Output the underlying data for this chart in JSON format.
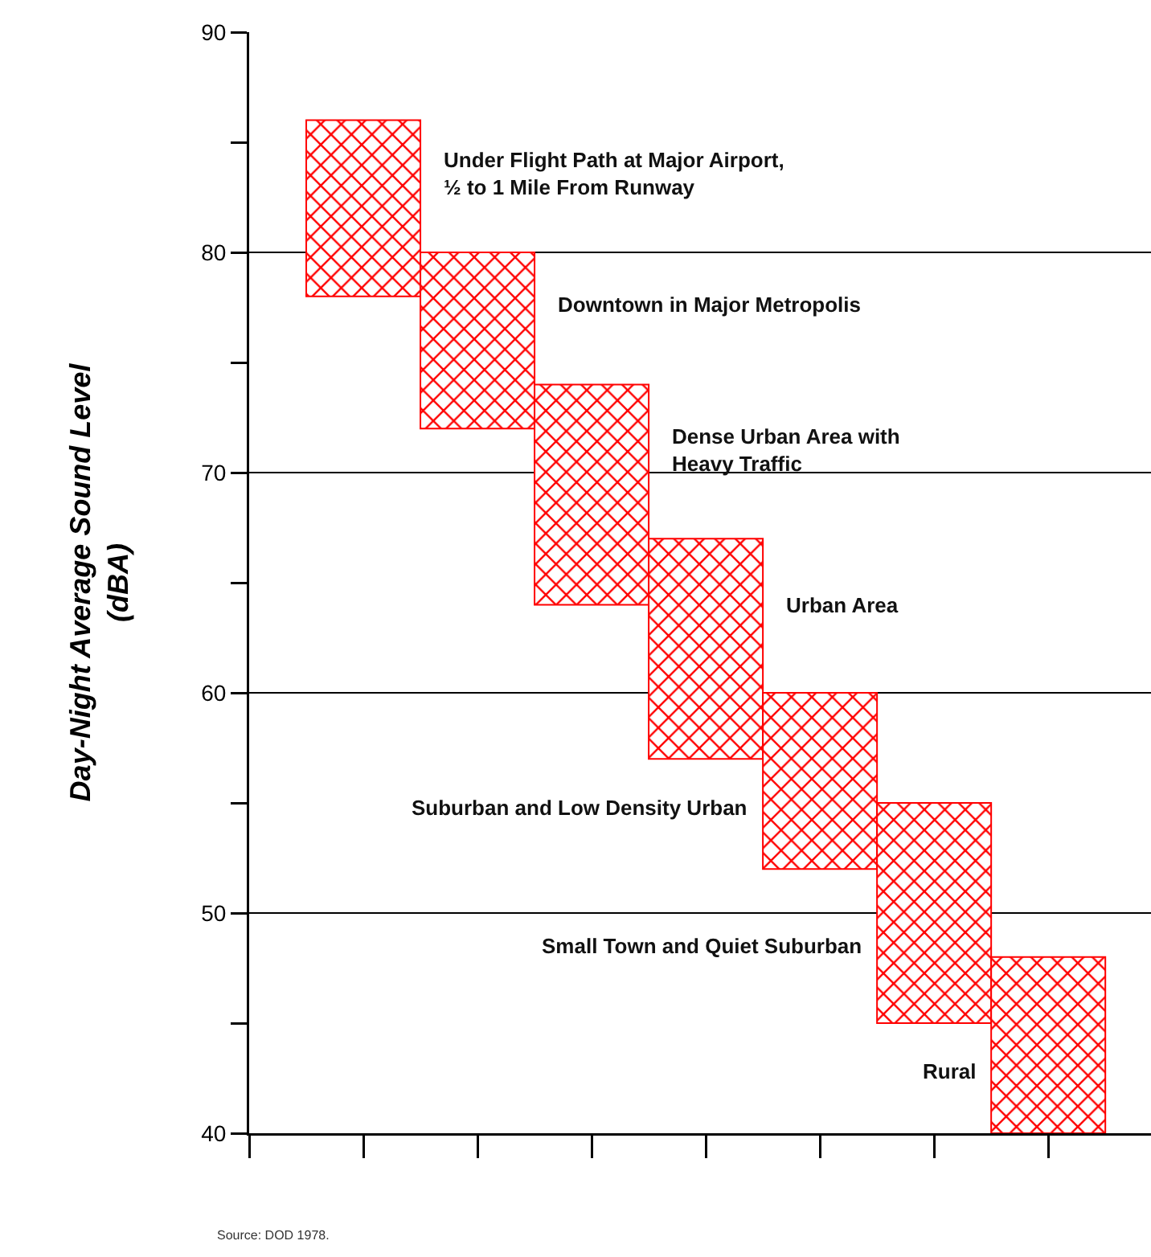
{
  "chart_data": {
    "type": "bar",
    "ylabel": "Day-Night Average Sound Level\n(dBA)",
    "categories": [
      null,
      null,
      null,
      null,
      null,
      null,
      null
    ],
    "base": [
      78,
      72,
      64,
      57,
      52,
      45,
      40
    ],
    "values": [
      8,
      8,
      10,
      10,
      8,
      10,
      8
    ],
    "color": "#ff0000",
    "ylim": [
      40,
      90
    ],
    "yticks": [
      40,
      {
        "value": 45,
        "label": null
      },
      50,
      {
        "value": 55,
        "label": null
      },
      60,
      {
        "value": 65,
        "label": null
      },
      70,
      {
        "value": 75,
        "label": null
      },
      80,
      {
        "value": 85,
        "label": null
      },
      90
    ],
    "grid": "y",
    "annotations": [
      "Under Flight Path at Major Airport,\n½ to 1 Mile From Runway",
      "Downtown in Major Metropolis",
      "Dense Urban Area with\nHeavy Traffic",
      "Urban Area",
      "Suburban and Low Density Urban",
      "Small Town and Quiet Suburban",
      "Rural",
      "Source: DOD 1978."
    ]
  }
}
